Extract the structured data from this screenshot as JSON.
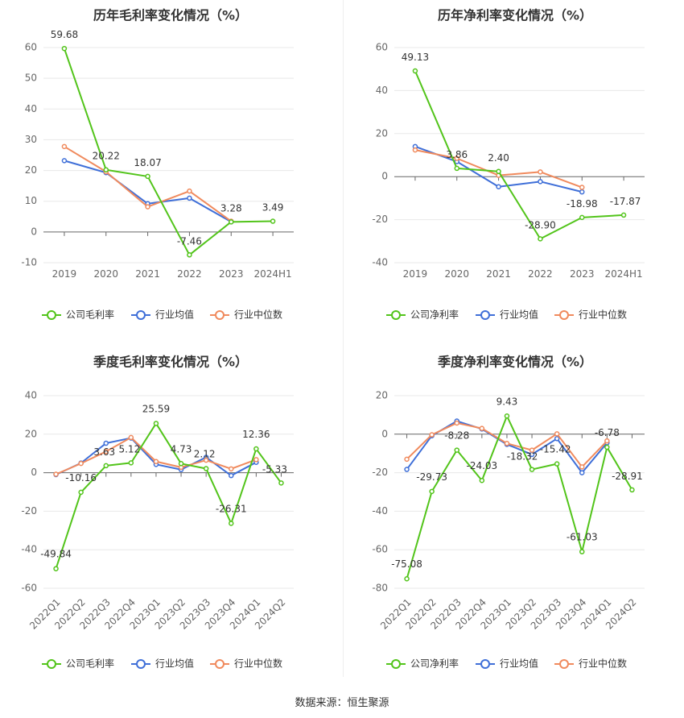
{
  "source": "数据来源：恒生聚源",
  "colors": {
    "company": "#52c41a",
    "avg": "#3f6fd8",
    "median": "#f08a5d"
  },
  "chart_data": [
    {
      "type": "line",
      "title": "历年毛利率变化情况（%）",
      "categories": [
        "2019",
        "2020",
        "2021",
        "2022",
        "2023",
        "2024H1"
      ],
      "ylim": [
        -10,
        60
      ],
      "yticks": [
        60,
        50,
        40,
        30,
        20,
        10,
        0,
        -10
      ],
      "rotate_x": false,
      "legend": "bottom",
      "series": [
        {
          "name": "公司毛利率",
          "key": "company",
          "values": [
            59.68,
            20.22,
            18.07,
            -7.46,
            3.28,
            3.49
          ],
          "labels": [
            "59.68",
            "20.22",
            "18.07",
            "-7.46",
            "3.28",
            "3.49"
          ]
        },
        {
          "name": "行业均值",
          "key": "avg",
          "values": [
            23.2,
            19.3,
            9.2,
            11.0,
            3.3,
            null
          ]
        },
        {
          "name": "行业中位数",
          "key": "median",
          "values": [
            27.8,
            19.6,
            8.2,
            13.3,
            3.5,
            null
          ]
        }
      ]
    },
    {
      "type": "line",
      "title": "历年净利率变化情况（%）",
      "categories": [
        "2019",
        "2020",
        "2021",
        "2022",
        "2023",
        "2024H1"
      ],
      "ylim": [
        -40,
        60
      ],
      "yticks": [
        60,
        40,
        20,
        0,
        -20,
        -40
      ],
      "rotate_x": false,
      "legend": "bottom",
      "series": [
        {
          "name": "公司净利率",
          "key": "company",
          "values": [
            49.13,
            3.86,
            2.4,
            -28.9,
            -18.98,
            -17.87
          ],
          "labels": [
            "49.13",
            "3.86",
            "2.40",
            "-28.90",
            "-18.98",
            "-17.87"
          ]
        },
        {
          "name": "行业均值",
          "key": "avg",
          "values": [
            14.0,
            7.0,
            -4.7,
            -2.3,
            -7.1,
            null
          ]
        },
        {
          "name": "行业中位数",
          "key": "median",
          "values": [
            12.4,
            8.5,
            0.6,
            2.2,
            -5.0,
            null
          ]
        }
      ]
    },
    {
      "type": "line",
      "title": "季度毛利率变化情况（%）",
      "categories": [
        "2022Q1",
        "2022Q2",
        "2022Q3",
        "2022Q4",
        "2023Q1",
        "2023Q2",
        "2023Q3",
        "2023Q4",
        "2024Q1",
        "2024Q2"
      ],
      "ylim": [
        -60,
        40
      ],
      "yticks": [
        40,
        20,
        0,
        -20,
        -40,
        -60
      ],
      "rotate_x": true,
      "legend": "bottom",
      "series": [
        {
          "name": "公司毛利率",
          "key": "company",
          "values": [
            -49.84,
            -10.16,
            3.63,
            5.12,
            25.59,
            4.73,
            2.12,
            -26.31,
            12.36,
            -5.33
          ],
          "labels": [
            "-49.84",
            "-10.16",
            "3.63",
            "5.12",
            "25.59",
            "4.73",
            "2.12",
            "-26.31",
            "12.36",
            "-5.33"
          ]
        },
        {
          "name": "行业均值",
          "key": "avg",
          "values": [
            -1.0,
            5.0,
            15.3,
            18.0,
            4.3,
            1.6,
            8.0,
            -1.5,
            5.4,
            null
          ]
        },
        {
          "name": "行业中位数",
          "key": "median",
          "values": [
            -0.8,
            4.8,
            11.0,
            18.3,
            5.8,
            2.8,
            6.5,
            2.0,
            6.8,
            null
          ]
        }
      ]
    },
    {
      "type": "line",
      "title": "季度净利率变化情况（%）",
      "categories": [
        "2022Q1",
        "2022Q2",
        "2022Q3",
        "2022Q4",
        "2023Q1",
        "2023Q2",
        "2023Q3",
        "2023Q4",
        "2024Q1",
        "2024Q2"
      ],
      "ylim": [
        -80,
        20
      ],
      "yticks": [
        20,
        0,
        -20,
        -40,
        -60,
        -80
      ],
      "rotate_x": true,
      "legend": "bottom",
      "series": [
        {
          "name": "公司净利率",
          "key": "company",
          "values": [
            -75.08,
            -29.73,
            -8.28,
            -24.03,
            9.43,
            -18.32,
            -15.42,
            -61.03,
            -6.78,
            -28.91
          ],
          "labels": [
            "-75.08",
            "-29.73",
            "-8.28",
            "-24.03",
            "9.43",
            "-18.32",
            "-15.42",
            "-61.03",
            "-6.78",
            "-28.91"
          ]
        },
        {
          "name": "行业均值",
          "key": "avg",
          "values": [
            -18.3,
            -0.8,
            6.8,
            2.7,
            -5.3,
            -10.5,
            -2.3,
            -20.0,
            -4.5,
            null
          ]
        },
        {
          "name": "行业中位数",
          "key": "median",
          "values": [
            -13.0,
            -0.3,
            5.8,
            3.0,
            -4.8,
            -8.3,
            0.2,
            -17.0,
            -3.5,
            null
          ]
        }
      ]
    }
  ]
}
